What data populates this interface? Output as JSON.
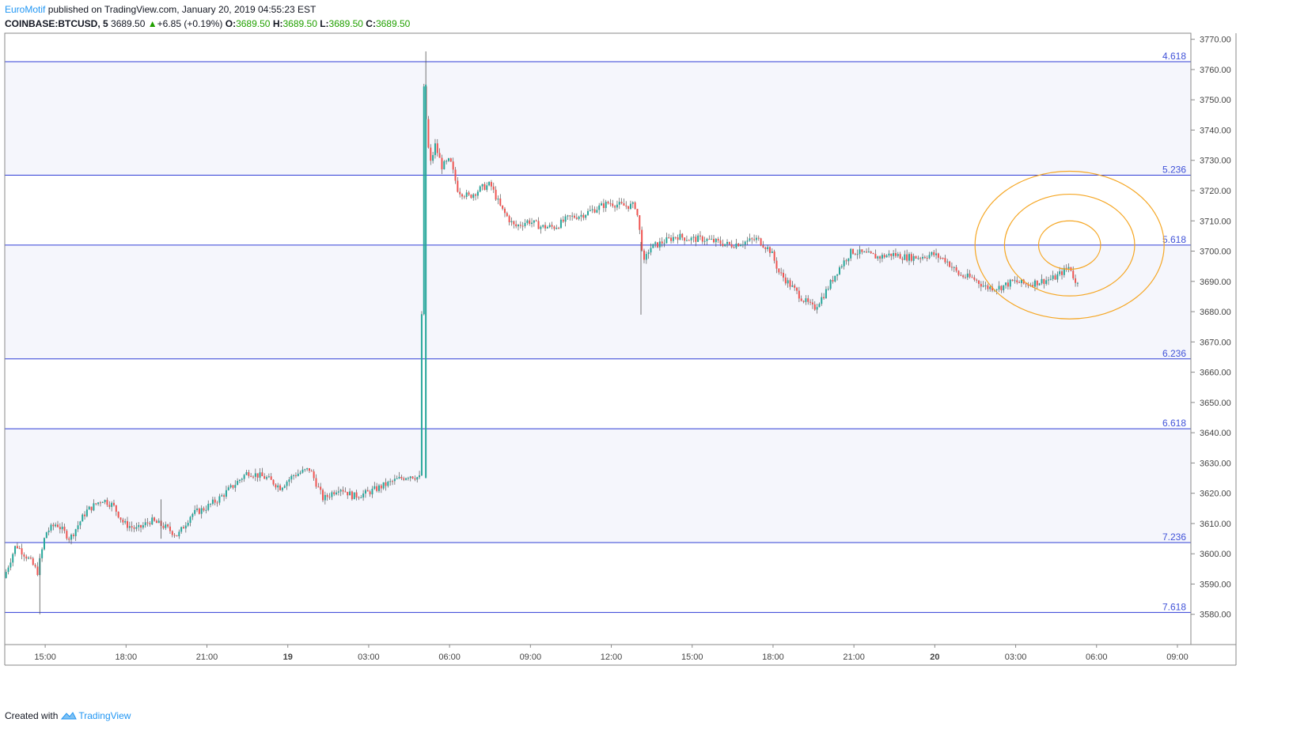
{
  "header": {
    "author": "EuroMotif",
    "published": "published on TradingView.com, January 20, 2019 04:55:23 EST",
    "symbol": "COINBASE:BTCUSD, 5",
    "last": "3689.50",
    "change_arrow": "▲",
    "change": "+6.85 (+0.19%)",
    "o_label": "O:",
    "o_value": "3689.50",
    "h_label": "H:",
    "h_value": "3689.50",
    "l_label": "L:",
    "l_value": "3689.50",
    "c_label": "C:",
    "c_value": "3689.50"
  },
  "footer": {
    "created_with": "Created with",
    "brand": "TradingView",
    "logo_icon": "tradingview-logo-icon"
  },
  "colors": {
    "up": "#26a69a",
    "down": "#ef5350",
    "level_line": "#2f3dd6",
    "level_label": "#3f51d8",
    "band_fill": "#f5f6fc",
    "circles": "#f5a623",
    "axis_text": "#444444"
  },
  "chart_data": {
    "type": "candlestick",
    "ylim": [
      3570,
      3772
    ],
    "x_hours_range": [
      13.5,
      57.5
    ],
    "yticks": [
      3580,
      3590,
      3600,
      3610,
      3620,
      3630,
      3640,
      3650,
      3660,
      3670,
      3680,
      3690,
      3700,
      3710,
      3720,
      3730,
      3740,
      3750,
      3760,
      3770
    ],
    "xticks": [
      {
        "label": "15:00",
        "h": 15
      },
      {
        "label": "18:00",
        "h": 18
      },
      {
        "label": "21:00",
        "h": 21
      },
      {
        "label": "19",
        "h": 24,
        "bold": true
      },
      {
        "label": "03:00",
        "h": 27
      },
      {
        "label": "06:00",
        "h": 30
      },
      {
        "label": "09:00",
        "h": 33
      },
      {
        "label": "12:00",
        "h": 36
      },
      {
        "label": "15:00",
        "h": 39
      },
      {
        "label": "18:00",
        "h": 42
      },
      {
        "label": "21:00",
        "h": 45
      },
      {
        "label": "20",
        "h": 48,
        "bold": true
      },
      {
        "label": "03:00",
        "h": 51
      },
      {
        "label": "06:00",
        "h": 54
      },
      {
        "label": "09:00",
        "h": 57
      }
    ],
    "levels": [
      {
        "label": "4.618",
        "price": 3762.6
      },
      {
        "label": "5.236",
        "price": 3725.1
      },
      {
        "label": "5.618",
        "price": 3702.0
      },
      {
        "label": "6.236",
        "price": 3664.4
      },
      {
        "label": "6.618",
        "price": 3641.3
      },
      {
        "label": "7.236",
        "price": 3603.7
      },
      {
        "label": "7.618",
        "price": 3580.6
      }
    ],
    "price_path": [
      [
        13.55,
        3592
      ],
      [
        14.0,
        3603
      ],
      [
        14.5,
        3598
      ],
      [
        14.8,
        3594
      ],
      [
        15.1,
        3607
      ],
      [
        15.5,
        3610
      ],
      [
        16.0,
        3605
      ],
      [
        16.6,
        3614
      ],
      [
        17.2,
        3618
      ],
      [
        17.6,
        3616
      ],
      [
        18.0,
        3610
      ],
      [
        18.5,
        3608
      ],
      [
        19.0,
        3611
      ],
      [
        19.5,
        3609
      ],
      [
        20.0,
        3606
      ],
      [
        20.5,
        3613
      ],
      [
        21.0,
        3615
      ],
      [
        21.5,
        3618
      ],
      [
        22.0,
        3622
      ],
      [
        22.6,
        3627
      ],
      [
        23.3,
        3625
      ],
      [
        23.8,
        3622
      ],
      [
        24.3,
        3626
      ],
      [
        24.9,
        3628
      ],
      [
        25.4,
        3618
      ],
      [
        26.0,
        3622
      ],
      [
        26.5,
        3619
      ],
      [
        27.0,
        3620
      ],
      [
        27.5,
        3622
      ],
      [
        28.0,
        3624
      ],
      [
        28.6,
        3626
      ],
      [
        29.0,
        3625
      ],
      [
        29.12,
        3755
      ],
      [
        29.35,
        3728
      ],
      [
        29.55,
        3735
      ],
      [
        29.8,
        3728
      ],
      [
        30.1,
        3730
      ],
      [
        30.4,
        3720
      ],
      [
        30.8,
        3718
      ],
      [
        31.3,
        3721
      ],
      [
        31.6,
        3722
      ],
      [
        32.0,
        3714
      ],
      [
        32.5,
        3708
      ],
      [
        33.0,
        3710
      ],
      [
        33.5,
        3708
      ],
      [
        34.0,
        3708
      ],
      [
        34.5,
        3711
      ],
      [
        35.0,
        3712
      ],
      [
        35.5,
        3714
      ],
      [
        36.0,
        3716
      ],
      [
        36.5,
        3715
      ],
      [
        37.0,
        3715
      ],
      [
        37.3,
        3696
      ],
      [
        37.5,
        3701
      ],
      [
        38.0,
        3703
      ],
      [
        38.5,
        3705
      ],
      [
        39.0,
        3704
      ],
      [
        39.5,
        3704
      ],
      [
        40.0,
        3703
      ],
      [
        40.5,
        3702
      ],
      [
        41.0,
        3703
      ],
      [
        41.5,
        3704
      ],
      [
        42.0,
        3700
      ],
      [
        42.3,
        3693
      ],
      [
        42.8,
        3688
      ],
      [
        43.2,
        3684
      ],
      [
        43.6,
        3681
      ],
      [
        44.0,
        3686
      ],
      [
        44.5,
        3694
      ],
      [
        45.0,
        3700
      ],
      [
        45.5,
        3699
      ],
      [
        46.0,
        3698
      ],
      [
        46.5,
        3699
      ],
      [
        47.0,
        3698
      ],
      [
        47.5,
        3698
      ],
      [
        48.0,
        3699
      ],
      [
        48.5,
        3697
      ],
      [
        49.0,
        3692
      ],
      [
        49.5,
        3691
      ],
      [
        50.0,
        3688
      ],
      [
        50.5,
        3688
      ],
      [
        51.0,
        3690
      ],
      [
        51.5,
        3689
      ],
      [
        52.0,
        3690
      ],
      [
        52.5,
        3691
      ],
      [
        52.8,
        3693
      ],
      [
        53.1,
        3695
      ],
      [
        53.3,
        3689.5
      ]
    ],
    "spikes": [
      {
        "h": 29.12,
        "lo": 3625,
        "hi": 3766
      },
      {
        "h": 14.8,
        "lo": 3580,
        "hi": 3600
      },
      {
        "h": 37.1,
        "lo": 3679,
        "hi": 3703
      },
      {
        "h": 19.3,
        "lo": 3605,
        "hi": 3618
      }
    ],
    "circles": {
      "h": 53.0,
      "price": 3702.0,
      "radii_units": [
        1.0,
        2.1,
        3.05
      ]
    }
  }
}
